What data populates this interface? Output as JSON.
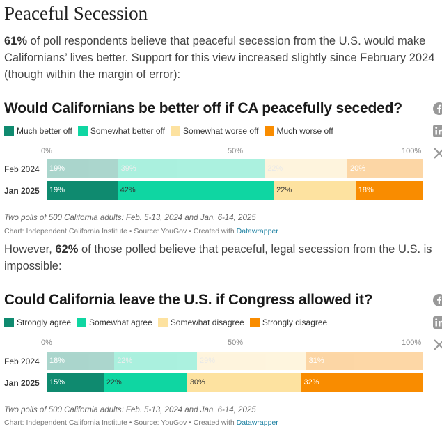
{
  "page": {
    "title": "Peaceful Secession",
    "intro_bold": "61%",
    "intro_text": " of poll respondents believe that peaceful secession from the U.S. would make Californians’ lives better. Support for this view increased slightly since February 2024 (though within the margin of error):",
    "middle_pre": "However, ",
    "middle_bold": "62%",
    "middle_text": " of those polled believe that peaceful, legal secession from the U.S. is impossible:"
  },
  "social_icons": [
    "facebook-icon",
    "linkedin-icon",
    "x-icon"
  ],
  "charts": [
    {
      "title": "Would Californians be better off if CA peacefully seceded?",
      "legend": [
        {
          "label": "Much better off",
          "color": "#0f8a6f"
        },
        {
          "label": "Somewhat better off",
          "color": "#0fd6a2"
        },
        {
          "label": "Somewhat worse off",
          "color": "#fde2a0"
        },
        {
          "label": "Much worse off",
          "color": "#f98c00"
        }
      ],
      "axis_ticks": [
        "0%",
        "50%",
        "100%"
      ],
      "rows": [
        {
          "label": "Feb 2024",
          "muted": true,
          "values": [
            19,
            39,
            22,
            20
          ],
          "labels": [
            "19%",
            "39%",
            "22%",
            "20%"
          ]
        },
        {
          "label": "Jan 2025",
          "muted": false,
          "values": [
            19,
            42,
            22,
            18
          ],
          "labels": [
            "19%",
            "42%",
            "22%",
            "18%"
          ]
        }
      ],
      "note": "Two polls of 500 California adults: Feb. 5-13, 2024 and Jan. 6-14, 2025",
      "credit_prefix": "Chart: Independent California Institute • Source: YouGov • Created with ",
      "credit_link": "Datawrapper"
    },
    {
      "title": "Could California leave the U.S. if Congress allowed it?",
      "legend": [
        {
          "label": "Strongly agree",
          "color": "#0f8a6f"
        },
        {
          "label": "Somewhat agree",
          "color": "#0fd6a2"
        },
        {
          "label": "Somewhat disagree",
          "color": "#fde2a0"
        },
        {
          "label": "Strongly disagree",
          "color": "#f98c00"
        }
      ],
      "axis_ticks": [
        "0%",
        "50%",
        "100%"
      ],
      "rows": [
        {
          "label": "Feb 2024",
          "muted": true,
          "values": [
            18,
            22,
            29,
            31
          ],
          "labels": [
            "18%",
            "22%",
            "29%",
            "31%"
          ]
        },
        {
          "label": "Jan 2025",
          "muted": false,
          "values": [
            15,
            22,
            30,
            32
          ],
          "labels": [
            "15%",
            "22%",
            "30%",
            "32%"
          ]
        }
      ],
      "note": "Two polls of 500 California adults: Feb. 5-13, 2024 and Jan. 6-14, 2025",
      "credit_prefix": "Chart: Independent California Institute • Source: YouGov • Created with ",
      "credit_link": "Datawrapper"
    }
  ],
  "chart_data": [
    {
      "type": "bar",
      "title": "Would Californians be better off if CA peacefully seceded?",
      "categories": [
        "Feb 2024",
        "Jan 2025"
      ],
      "series": [
        {
          "name": "Much better off",
          "values": [
            19,
            19
          ]
        },
        {
          "name": "Somewhat better off",
          "values": [
            39,
            42
          ]
        },
        {
          "name": "Somewhat worse off",
          "values": [
            22,
            22
          ]
        },
        {
          "name": "Much worse off",
          "values": [
            20,
            18
          ]
        }
      ],
      "stacked": true,
      "orientation": "horizontal",
      "xlim": [
        0,
        100
      ],
      "xticks": [
        "0%",
        "50%",
        "100%"
      ],
      "legend": "top"
    },
    {
      "type": "bar",
      "title": "Could California leave the U.S. if Congress allowed it?",
      "categories": [
        "Feb 2024",
        "Jan 2025"
      ],
      "series": [
        {
          "name": "Strongly agree",
          "values": [
            18,
            15
          ]
        },
        {
          "name": "Somewhat agree",
          "values": [
            22,
            22
          ]
        },
        {
          "name": "Somewhat disagree",
          "values": [
            29,
            30
          ]
        },
        {
          "name": "Strongly disagree",
          "values": [
            31,
            32
          ]
        }
      ],
      "stacked": true,
      "orientation": "horizontal",
      "xlim": [
        0,
        100
      ],
      "xticks": [
        "0%",
        "50%",
        "100%"
      ],
      "legend": "top"
    }
  ]
}
